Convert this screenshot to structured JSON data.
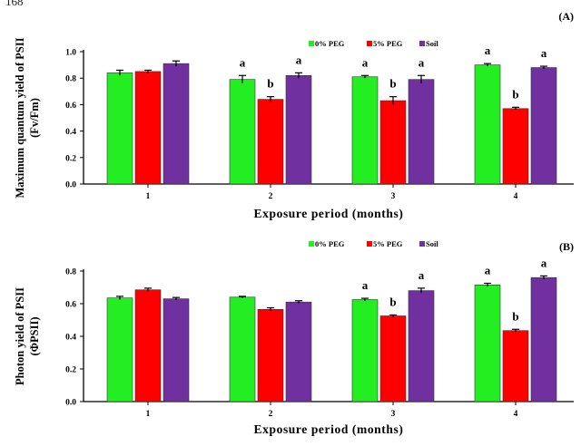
{
  "page_number": "168",
  "chart_data": [
    {
      "type": "bar",
      "panel_label": "(A)",
      "ylabel_lines": [
        "Maximum quantum yield of PSII",
        "(Fv/Fm)"
      ],
      "xlabel": "Exposure period (months)",
      "categories": [
        "1",
        "2",
        "3",
        "4"
      ],
      "ylim": [
        0,
        1.0
      ],
      "yticks": [
        "0.0",
        "0.2",
        "0.4",
        "0.6",
        "0.8",
        "1.0"
      ],
      "legend_position": "top-right",
      "colors": [
        "#22ee22",
        "#ff0000",
        "#7030a0"
      ],
      "series": [
        {
          "name": "0% PEG",
          "values": [
            0.84,
            0.79,
            0.81,
            0.9
          ],
          "errors": [
            0.02,
            0.03,
            0.01,
            0.01
          ],
          "sig": [
            "",
            "a",
            "a",
            "a"
          ]
        },
        {
          "name": "5% PEG",
          "values": [
            0.85,
            0.64,
            0.63,
            0.57
          ],
          "errors": [
            0.01,
            0.02,
            0.03,
            0.01
          ],
          "sig": [
            "",
            "b",
            "b",
            "b"
          ]
        },
        {
          "name": "Soil",
          "values": [
            0.91,
            0.82,
            0.79,
            0.88
          ],
          "errors": [
            0.02,
            0.02,
            0.03,
            0.01
          ],
          "sig": [
            "",
            "a",
            "a",
            "a"
          ]
        }
      ]
    },
    {
      "type": "bar",
      "panel_label": "(B)",
      "ylabel_lines": [
        "Photon yield of PSII",
        "(ΦPSII)"
      ],
      "xlabel": "Exposure period (months)",
      "categories": [
        "1",
        "2",
        "3",
        "4"
      ],
      "ylim": [
        0,
        0.8
      ],
      "yticks": [
        "0.0",
        "0.2",
        "0.4",
        "0.6",
        "0.8"
      ],
      "legend_position": "top-right",
      "colors": [
        "#22ee22",
        "#ff0000",
        "#7030a0"
      ],
      "series": [
        {
          "name": "0% PEG",
          "values": [
            0.635,
            0.64,
            0.625,
            0.715
          ],
          "errors": [
            0.01,
            0.005,
            0.008,
            0.01
          ],
          "sig": [
            "",
            "",
            "a",
            "a"
          ]
        },
        {
          "name": "5% PEG",
          "values": [
            0.685,
            0.565,
            0.525,
            0.435
          ],
          "errors": [
            0.01,
            0.01,
            0.006,
            0.008
          ],
          "sig": [
            "",
            "",
            "b",
            "b"
          ]
        },
        {
          "name": "Soil",
          "values": [
            0.63,
            0.61,
            0.68,
            0.76
          ],
          "errors": [
            0.008,
            0.008,
            0.015,
            0.01
          ],
          "sig": [
            "",
            "",
            "a",
            "a"
          ]
        }
      ]
    }
  ]
}
